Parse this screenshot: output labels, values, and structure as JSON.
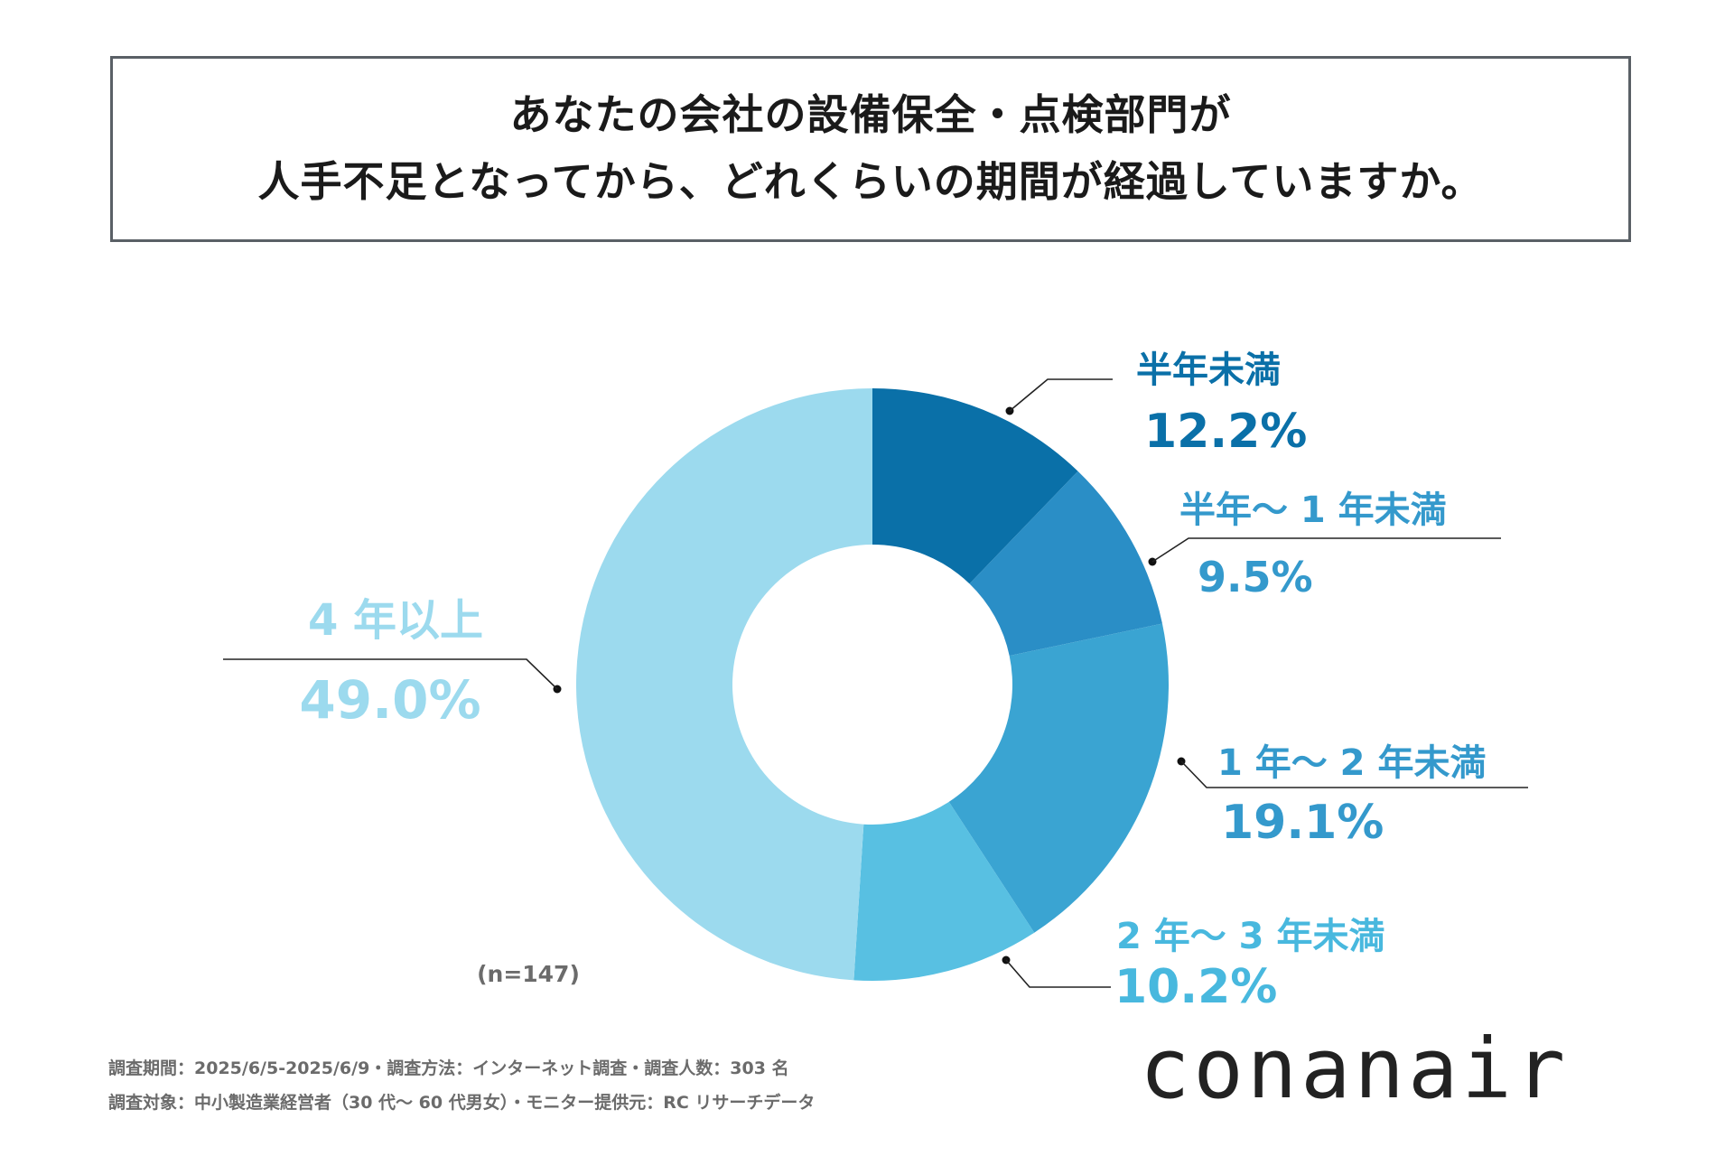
{
  "title": {
    "line1": "あなたの会社の設備保全・点検部門が",
    "line2": "人手不足となってから、どれくらいの期間が経過していますか。"
  },
  "sample_size": "(n=147)",
  "footnotes": {
    "line1": "調査期間：2025/6/5-2025/6/9・調査方法：インターネット調査・調査人数：303 名",
    "line2": "調査対象：中小製造業経営者（30 代～ 60 代男女）・モニター提供元：RC リサーチデータ"
  },
  "logo": "conanair",
  "chart_data": {
    "type": "pie",
    "donut": true,
    "slices": [
      {
        "label": "半年未満",
        "value": 12.2,
        "display": "12.2%",
        "color": "#0a70a8"
      },
      {
        "label": "半年～ 1 年未満",
        "value": 9.5,
        "display": "9.5%",
        "color": "#2a8ec6"
      },
      {
        "label": "1 年～ 2 年未満",
        "value": 19.1,
        "display": "19.1%",
        "color": "#3aa4d2"
      },
      {
        "label": "2 年～ 3 年未満",
        "value": 10.2,
        "display": "10.2%",
        "color": "#58c0e2"
      },
      {
        "label": "4 年以上",
        "value": 49.0,
        "display": "49.0%",
        "color": "#9cdaee"
      }
    ]
  }
}
